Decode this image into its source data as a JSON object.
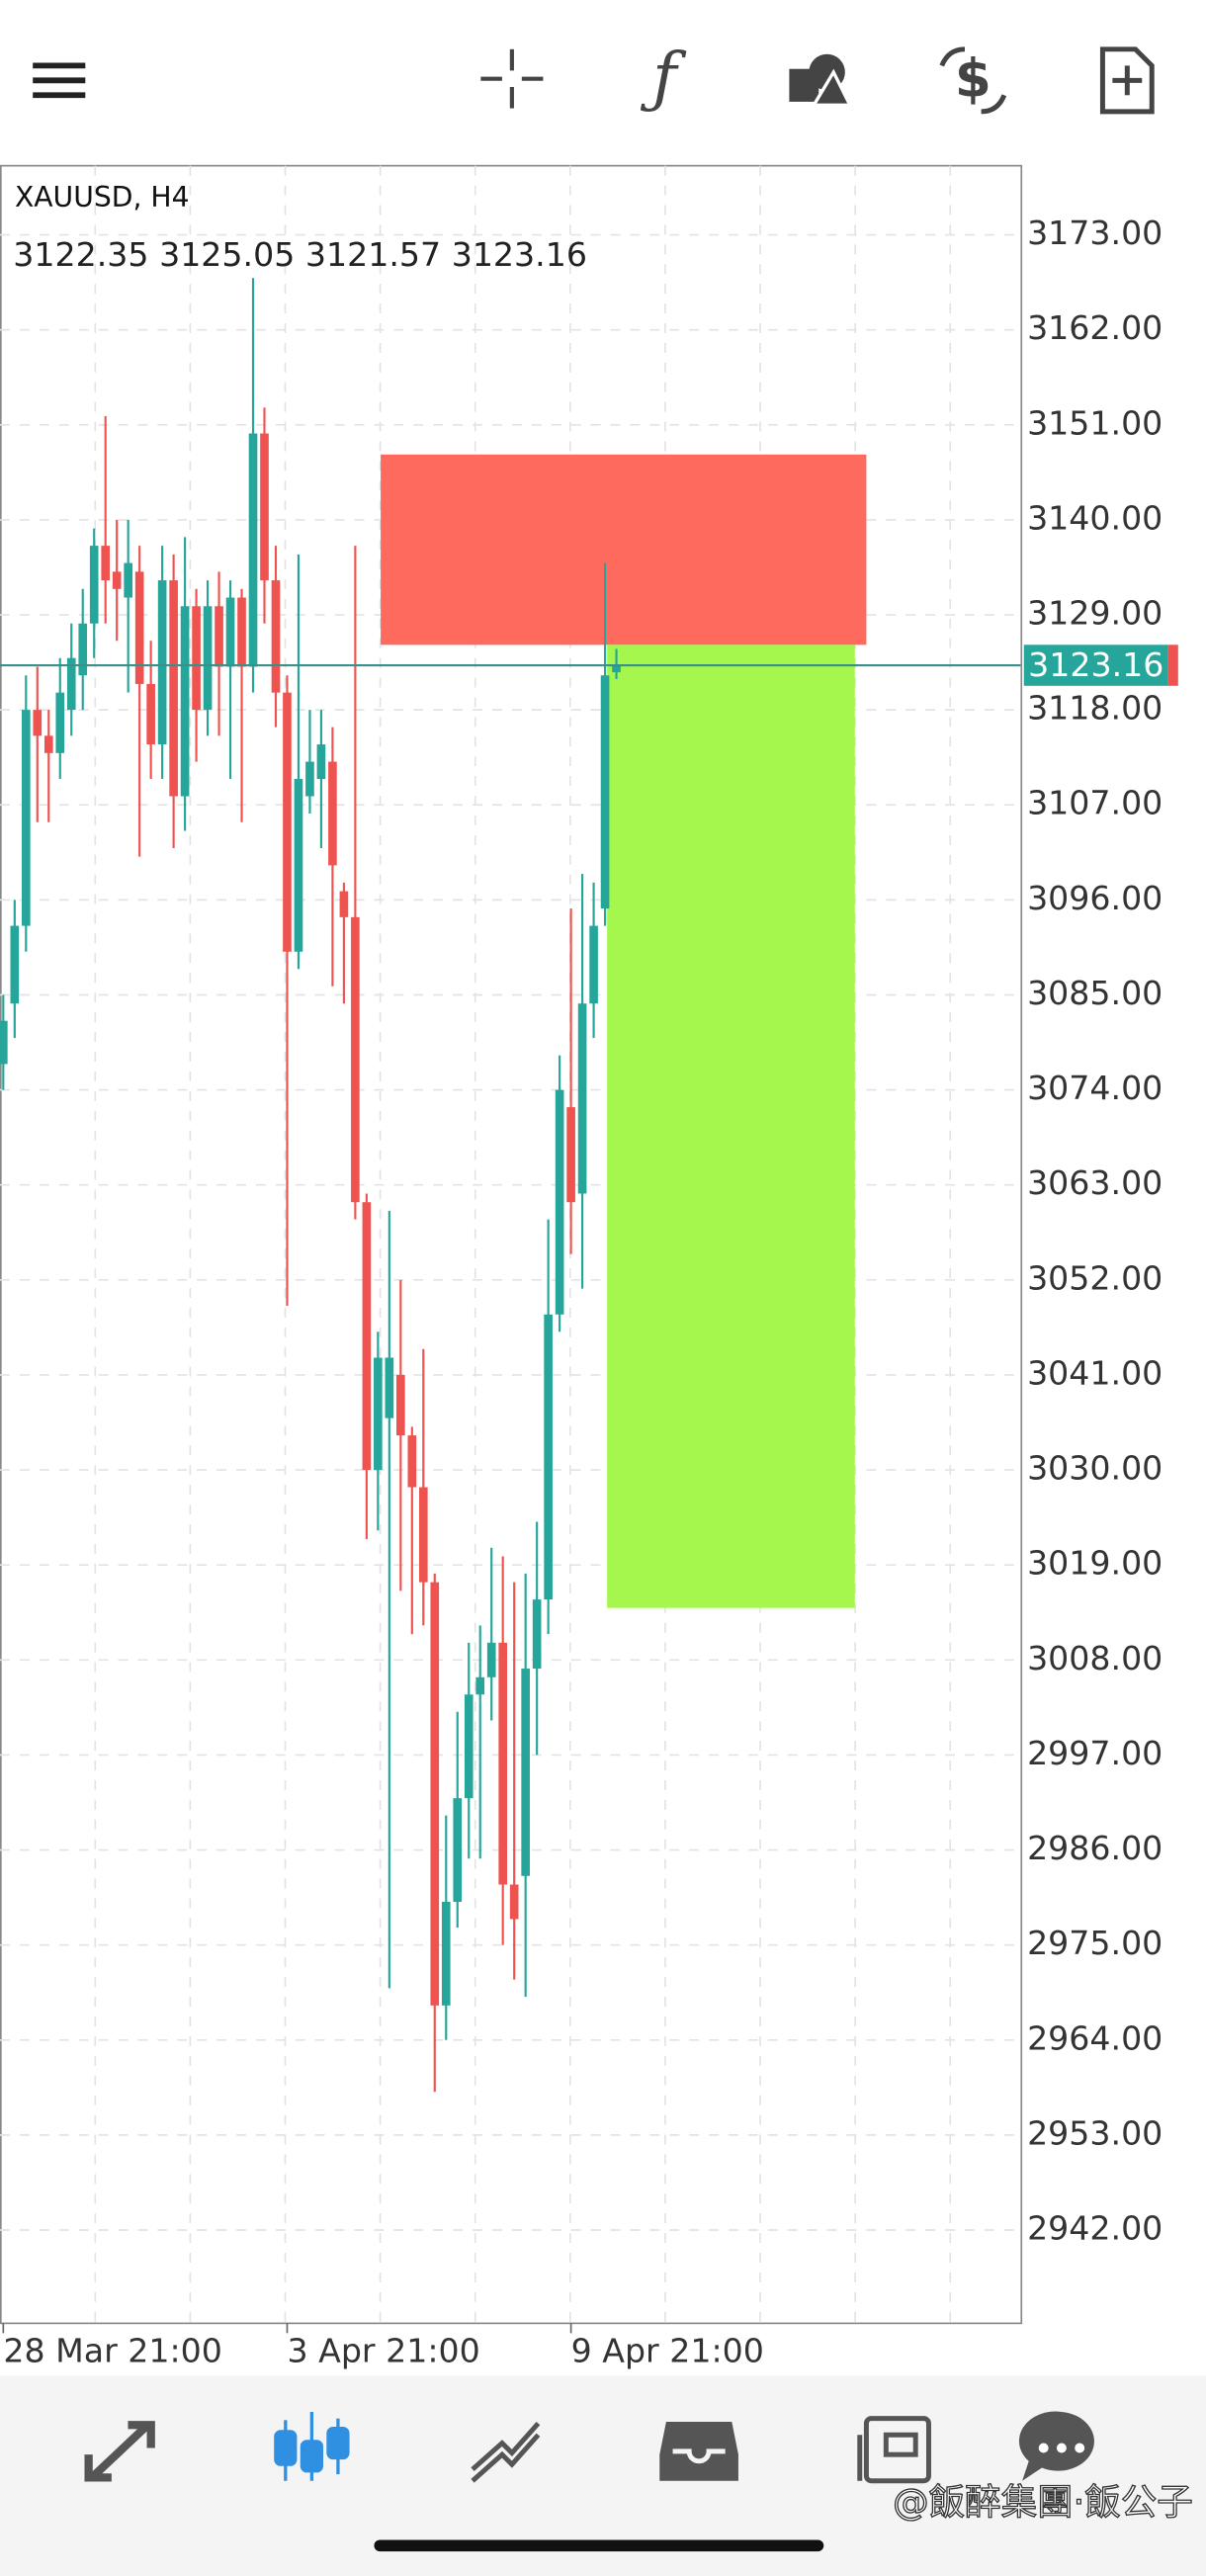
{
  "chart_data": {
    "type": "candlestick",
    "title": "XAUUSD, H4",
    "up_color": "#26a69a",
    "down_color": "#ef5350",
    "grid": true,
    "open": [
      3077,
      3084,
      3093,
      3118,
      3115,
      3113,
      3118,
      3122,
      3128,
      3137,
      3134,
      3131,
      3134,
      3121,
      3114,
      3133,
      3108,
      3130,
      3118,
      3130,
      3123,
      3131,
      3123,
      3150,
      3133,
      3120,
      3090,
      3108,
      3110,
      3112,
      3097,
      3094,
      3061,
      3030,
      3036,
      3041,
      3034,
      3028,
      3017,
      2968,
      2980,
      2992,
      3004,
      3006,
      3010,
      2982,
      2983,
      3007,
      3015,
      3048,
      3072,
      3062,
      3084,
      3095,
      3122.35
    ],
    "high": [
      3085,
      3096,
      3122,
      3123,
      3118,
      3124,
      3128,
      3132,
      3139,
      3152,
      3140,
      3140,
      3137,
      3126,
      3137,
      3136,
      3138,
      3132,
      3133,
      3134,
      3133,
      3132,
      3168,
      3153,
      3137,
      3122,
      3136,
      3118,
      3118,
      3116,
      3098,
      3137,
      3062,
      3046,
      3060,
      3052,
      3035,
      3044,
      3018,
      2990,
      3002,
      3010,
      3012,
      3021,
      3020,
      3017,
      3018,
      3024,
      3059,
      3078,
      3095,
      3099,
      3098,
      3135,
      3125.05
    ],
    "low": [
      3074,
      3080,
      3090,
      3105,
      3105,
      3110,
      3115,
      3118,
      3124,
      3128,
      3126,
      3120,
      3101,
      3110,
      3110,
      3102,
      3104,
      3112,
      3115,
      3115,
      3110,
      3105,
      3120,
      3128,
      3116,
      3049,
      3088,
      3106,
      3102,
      3086,
      3084,
      3059,
      3022,
      3023,
      2970,
      3016,
      3011,
      3012,
      2958,
      2964,
      2977,
      2985,
      2985,
      3001,
      2975,
      2971,
      2969,
      2997,
      3011,
      3046,
      3055,
      3051,
      3080,
      3093,
      3121.57
    ],
    "close": [
      3082,
      3093,
      3118,
      3115,
      3113,
      3120,
      3124,
      3128,
      3137,
      3133,
      3132,
      3135,
      3121,
      3114,
      3133,
      3108,
      3130,
      3118,
      3130,
      3123,
      3131,
      3123,
      3150,
      3133,
      3120,
      3090,
      3110,
      3112,
      3114,
      3100,
      3094,
      3061,
      3030,
      3043,
      3043,
      3034,
      3028,
      3017,
      2968,
      2980,
      2992,
      3004,
      3006,
      3010,
      2982,
      2978,
      3007,
      3015,
      3048,
      3074,
      3061,
      3084,
      3093,
      3122,
      3123.16
    ],
    "xlim": [
      -0.29,
      89.6
    ],
    "xticks": [
      {
        "value": 0,
        "label": "28 Mar 21:00"
      },
      {
        "value": 25,
        "label": "3 Apr 21:00"
      },
      {
        "value": 50,
        "label": "9 Apr 21:00"
      }
    ],
    "ylim": [
      2931.2,
      3181
    ],
    "yticks": [
      {
        "value": 3173,
        "label": "3173.00"
      },
      {
        "value": 3162,
        "label": "3162.00"
      },
      {
        "value": 3151,
        "label": "3151.00"
      },
      {
        "value": 3140,
        "label": "3140.00"
      },
      {
        "value": 3129,
        "label": "3129.00"
      },
      {
        "value": 3118,
        "label": "3118.00"
      },
      {
        "value": 3107,
        "label": "3107.00"
      },
      {
        "value": 3096,
        "label": "3096.00"
      },
      {
        "value": 3085,
        "label": "3085.00"
      },
      {
        "value": 3074,
        "label": "3074.00"
      },
      {
        "value": 3063,
        "label": "3063.00"
      },
      {
        "value": 3052,
        "label": "3052.00"
      },
      {
        "value": 3041,
        "label": "3041.00"
      },
      {
        "value": 3030,
        "label": "3030.00"
      },
      {
        "value": 3019,
        "label": "3019.00"
      },
      {
        "value": 3008,
        "label": "3008.00"
      },
      {
        "value": 2997,
        "label": "2997.00"
      },
      {
        "value": 2986,
        "label": "2986.00"
      },
      {
        "value": 2975,
        "label": "2975.00"
      },
      {
        "value": 2964,
        "label": "2964.00"
      },
      {
        "value": 2953,
        "label": "2953.00"
      },
      {
        "value": 2942,
        "label": "2942.00"
      }
    ]
  },
  "watermark": "@飯醉集團·飯公子"
}
